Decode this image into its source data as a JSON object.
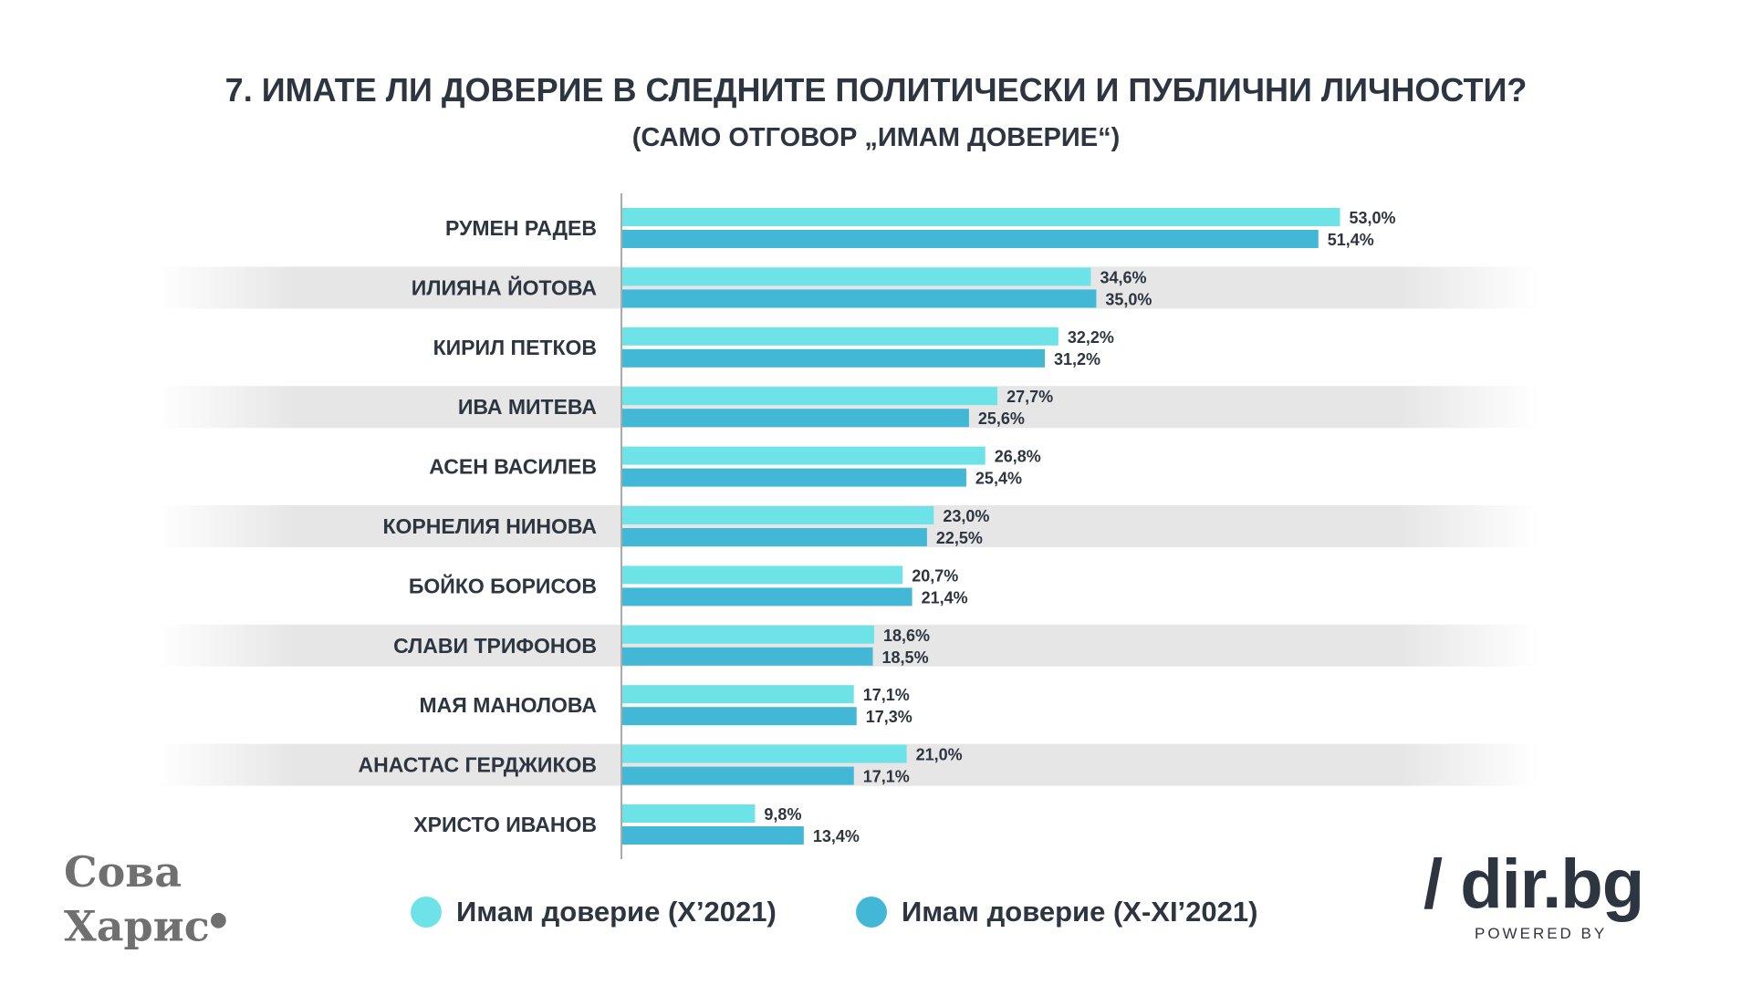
{
  "title": "7. ИМАТЕ ЛИ ДОВЕРИЕ В СЛЕДНИТЕ ПОЛИТИЧЕСКИ И ПУБЛИЧНИ ЛИЧНОСТИ?",
  "subtitle": "(САМО ОТГОВОР „ИМАМ ДОВЕРИЕ“)",
  "colors": {
    "series1": "#6de3e8",
    "series2": "#42b8d6",
    "text": "#2d3540",
    "stripe": "#e6e6e6"
  },
  "chart_data": {
    "type": "bar",
    "orientation": "horizontal",
    "title": "7. ИМАТЕ ЛИ ДОВЕРИЕ В СЛЕДНИТЕ ПОЛИТИЧЕСКИ И ПУБЛИЧНИ ЛИЧНОСТИ?",
    "subtitle": "(САМО ОТГОВОР „ИМАМ ДОВЕРИЕ“)",
    "xlim": [
      0,
      100
    ],
    "categories": [
      "РУМЕН РАДЕВ",
      "ИЛИЯНА ЙОТОВА",
      "КИРИЛ ПЕТКОВ",
      "ИВА МИТЕВА",
      "АСЕН ВАСИЛЕВ",
      "КОРНЕЛИЯ НИНОВА",
      "БОЙКО БОРИСОВ",
      "СЛАВИ ТРИФОНОВ",
      "МАЯ МАНОЛОВА",
      "АНАСТАС ГЕРДЖИКОВ",
      "ХРИСТО ИВАНОВ"
    ],
    "series": [
      {
        "name": "Имам доверие (X’2021)",
        "values": [
          53.0,
          34.6,
          32.2,
          27.7,
          26.8,
          23.0,
          20.7,
          18.6,
          17.1,
          21.0,
          9.8
        ],
        "labels": [
          "53,0%",
          "34,6%",
          "32,2%",
          "27,7%",
          "26,8%",
          "23,0%",
          "20,7%",
          "18,6%",
          "17,1%",
          "21,0%",
          "9,8%"
        ]
      },
      {
        "name": "Имам доверие (X-XI’2021)",
        "values": [
          51.4,
          35.0,
          31.2,
          25.6,
          25.4,
          22.5,
          21.4,
          18.5,
          17.3,
          17.1,
          13.4
        ],
        "labels": [
          "51,4%",
          "35,0%",
          "31,2%",
          "25,6%",
          "25,4%",
          "22,5%",
          "21,4%",
          "18,5%",
          "17,3%",
          "17,1%",
          "13,4%"
        ]
      }
    ],
    "legend": "bottom"
  },
  "logos": {
    "left_line1": "Сова",
    "left_line2": "Харис",
    "right_main": "/ dir.bg",
    "right_sub": "POWERED BY"
  }
}
